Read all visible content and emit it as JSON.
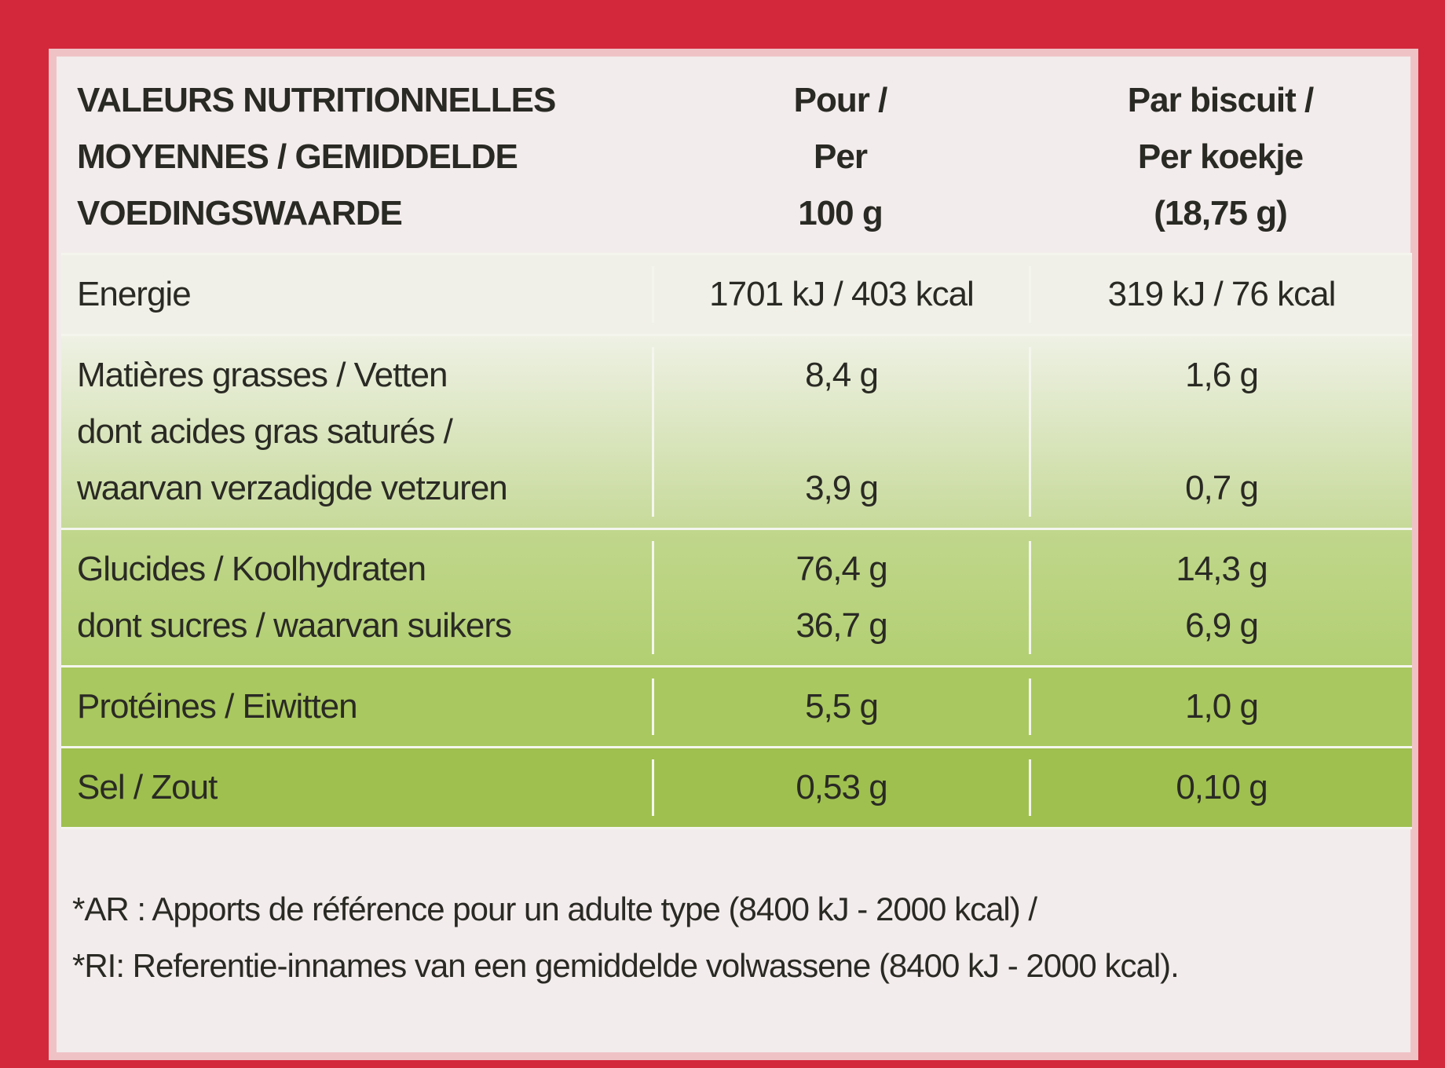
{
  "table": {
    "header": [
      [
        "VALEURS NUTRITIONNELLES",
        "MOYENNES / GEMIDDELDE",
        "VOEDINGSWAARDE"
      ],
      [
        "Pour /",
        "Per",
        "100 g"
      ],
      [
        "Par biscuit /",
        "Per koekje",
        "(18,75 g)"
      ]
    ],
    "sections": [
      [
        {
          "label": [
            "Energie"
          ],
          "per_100g": "1701 kJ / 403 kcal",
          "per_biscuit": "319 kJ / 76 kcal"
        }
      ],
      [
        {
          "label": [
            "Matières grasses / Vetten"
          ],
          "per_100g": "8,4 g",
          "per_biscuit": "1,6 g"
        },
        {
          "label": [
            "dont acides gras saturés /",
            "waarvan verzadigde vetzuren"
          ],
          "per_100g": "3,9 g",
          "per_biscuit": "0,7 g"
        }
      ],
      [
        {
          "label": [
            "Glucides / Koolhydraten"
          ],
          "per_100g": "76,4 g",
          "per_biscuit": "14,3 g"
        },
        {
          "label": [
            "dont sucres / waarvan suikers"
          ],
          "per_100g": "36,7 g",
          "per_biscuit": "6,9 g"
        }
      ],
      [
        {
          "label": [
            "Protéines / Eiwitten"
          ],
          "per_100g": "5,5 g",
          "per_biscuit": "1,0 g"
        }
      ],
      [
        {
          "label": [
            "Sel / Zout"
          ],
          "per_100g": "0,53 g",
          "per_biscuit": "0,10 g"
        }
      ]
    ]
  },
  "footnote": [
    "*AR : Apports de référence pour un adulte type (8400 kJ - 2000 kcal) /",
    "*RI: Referentie-innames van een gemiddelde volwassene (8400 kJ - 2000 kcal)."
  ]
}
